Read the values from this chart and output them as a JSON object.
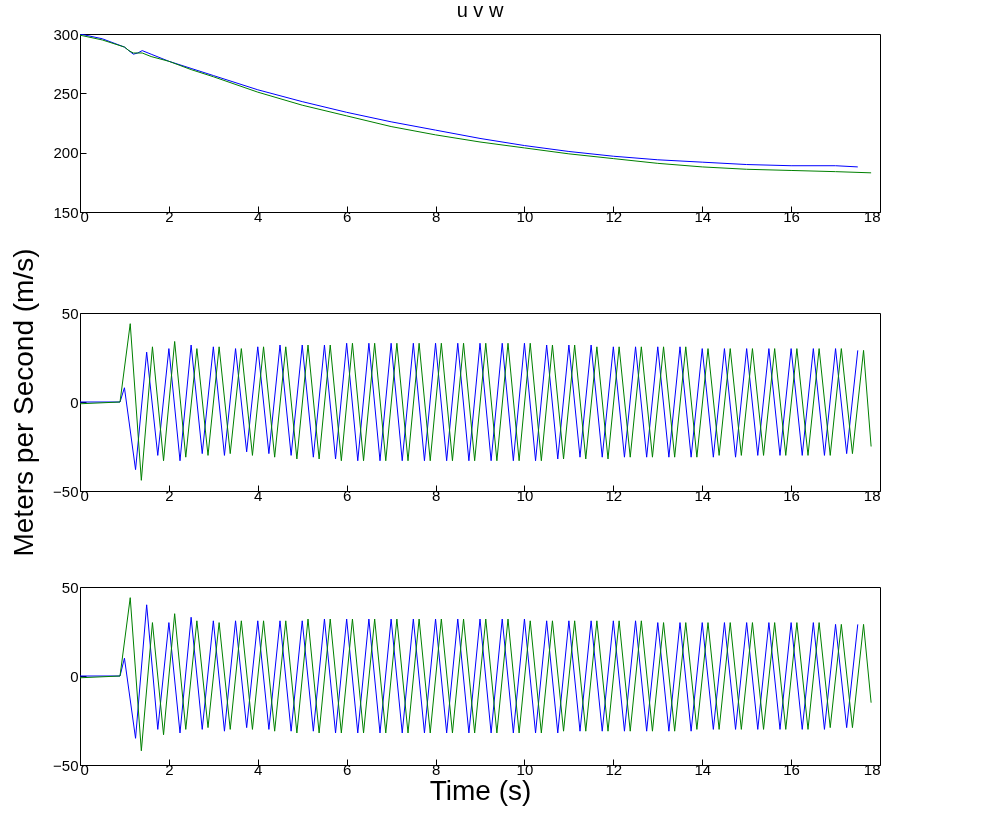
{
  "chart_data": [
    {
      "type": "line",
      "title": "u v w",
      "xlim": [
        0,
        18
      ],
      "xticks": [
        0,
        2,
        4,
        6,
        8,
        10,
        12,
        14,
        16,
        18
      ],
      "ylim": [
        150,
        300
      ],
      "yticks": [
        150,
        200,
        250,
        300
      ],
      "series": [
        {
          "color": "#0000ff",
          "x": [
            0,
            0.5,
            1.0,
            1.1,
            1.2,
            1.3,
            1.4,
            1.6,
            2,
            2.5,
            3,
            4,
            5,
            6,
            7,
            8,
            9,
            10,
            11,
            12,
            13,
            14,
            15,
            16,
            17,
            17.5
          ],
          "values": [
            300,
            296,
            289,
            286,
            283,
            284,
            286,
            283,
            277,
            271,
            265,
            253,
            243,
            234,
            226,
            219,
            212,
            206,
            201,
            197,
            194,
            192,
            190,
            189,
            189,
            188
          ]
        },
        {
          "color": "#008000",
          "x": [
            0,
            0.5,
            1.0,
            1.1,
            1.2,
            1.3,
            1.4,
            1.6,
            2,
            2.5,
            3,
            4,
            5,
            6,
            7,
            8,
            9,
            10,
            11,
            12,
            13,
            14,
            15,
            16,
            17,
            17.8
          ],
          "values": [
            299,
            295,
            289,
            286,
            284,
            284,
            284,
            281,
            277,
            270,
            264,
            251,
            240,
            231,
            222,
            215,
            209,
            204,
            199,
            195,
            191,
            188,
            186,
            185,
            184,
            183
          ]
        }
      ]
    },
    {
      "type": "line",
      "ylabel": "Meters per Second (m/s)",
      "xlim": [
        0,
        18
      ],
      "xticks": [
        0,
        2,
        4,
        6,
        8,
        10,
        12,
        14,
        16,
        18
      ],
      "ylim": [
        -50,
        50
      ],
      "yticks": [
        -50,
        0,
        50
      ],
      "series": [
        {
          "color": "#0000ff",
          "x": [
            0,
            0.9,
            1.0,
            1.25,
            1.5,
            1.75,
            2.0,
            2.25,
            2.5,
            2.75,
            3.0,
            3.25,
            3.5,
            3.75,
            4.0,
            4.25,
            4.5,
            4.75,
            5.0,
            5.25,
            5.5,
            5.75,
            6.0,
            6.25,
            6.5,
            6.75,
            7.0,
            7.25,
            7.5,
            7.75,
            8.0,
            8.25,
            8.5,
            8.75,
            9.0,
            9.25,
            9.5,
            9.75,
            10.0,
            10.25,
            10.5,
            10.75,
            11.0,
            11.25,
            11.5,
            11.75,
            12.0,
            12.25,
            12.5,
            12.75,
            13.0,
            13.25,
            13.5,
            13.75,
            14.0,
            14.25,
            14.5,
            14.75,
            15.0,
            15.25,
            15.5,
            15.75,
            16.0,
            16.25,
            16.5,
            16.75,
            17.0,
            17.25,
            17.5
          ],
          "values": [
            0,
            0,
            8,
            -38,
            28,
            -30,
            30,
            -33,
            32,
            -29,
            31,
            -30,
            30,
            -28,
            31,
            -29,
            32,
            -30,
            32,
            -31,
            32,
            -32,
            33,
            -33,
            33,
            -33,
            33,
            -33,
            33,
            -33,
            33,
            -33,
            33,
            -33,
            33,
            -33,
            33,
            -33,
            33,
            -33,
            32,
            -32,
            32,
            -31,
            32,
            -31,
            31,
            -31,
            31,
            -31,
            31,
            -31,
            31,
            -31,
            30,
            -31,
            30,
            -31,
            30,
            -30,
            30,
            -30,
            30,
            -30,
            30,
            -30,
            30,
            -29,
            29
          ]
        },
        {
          "color": "#008000",
          "x": [
            0,
            0.9,
            1.13,
            1.38,
            1.63,
            1.88,
            2.13,
            2.38,
            2.63,
            2.88,
            3.13,
            3.38,
            3.63,
            3.88,
            4.13,
            4.38,
            4.63,
            4.88,
            5.13,
            5.38,
            5.63,
            5.88,
            6.13,
            6.38,
            6.63,
            6.88,
            7.13,
            7.38,
            7.63,
            7.88,
            8.13,
            8.38,
            8.63,
            8.88,
            9.13,
            9.38,
            9.63,
            9.88,
            10.13,
            10.38,
            10.63,
            10.88,
            11.13,
            11.38,
            11.63,
            11.88,
            12.13,
            12.38,
            12.63,
            12.88,
            13.13,
            13.38,
            13.63,
            13.88,
            14.13,
            14.38,
            14.63,
            14.88,
            15.13,
            15.38,
            15.63,
            15.88,
            16.13,
            16.38,
            16.63,
            16.88,
            17.13,
            17.38,
            17.63,
            17.8
          ],
          "values": [
            -1,
            0,
            44,
            -44,
            31,
            -33,
            34,
            -31,
            30,
            -30,
            31,
            -29,
            30,
            -30,
            31,
            -31,
            31,
            -32,
            32,
            -32,
            32,
            -33,
            33,
            -33,
            33,
            -33,
            33,
            -33,
            33,
            -33,
            33,
            -33,
            33,
            -33,
            33,
            -33,
            33,
            -33,
            33,
            -33,
            32,
            -32,
            32,
            -32,
            31,
            -32,
            31,
            -31,
            31,
            -31,
            31,
            -31,
            31,
            -31,
            30,
            -30,
            30,
            -30,
            30,
            -30,
            30,
            -30,
            30,
            -30,
            30,
            -30,
            30,
            -29,
            29,
            -25
          ]
        }
      ]
    },
    {
      "type": "line",
      "xlabel": "Time (s)",
      "xlim": [
        0,
        18
      ],
      "xticks": [
        0,
        2,
        4,
        6,
        8,
        10,
        12,
        14,
        16,
        18
      ],
      "ylim": [
        -50,
        50
      ],
      "yticks": [
        -50,
        0,
        50
      ],
      "series": [
        {
          "color": "#0000ff",
          "x": [
            0,
            0.9,
            1.0,
            1.25,
            1.5,
            1.75,
            2.0,
            2.25,
            2.5,
            2.75,
            3.0,
            3.25,
            3.5,
            3.75,
            4.0,
            4.25,
            4.5,
            4.75,
            5.0,
            5.25,
            5.5,
            5.75,
            6.0,
            6.25,
            6.5,
            6.75,
            7.0,
            7.25,
            7.5,
            7.75,
            8.0,
            8.25,
            8.5,
            8.75,
            9.0,
            9.25,
            9.5,
            9.75,
            10.0,
            10.25,
            10.5,
            10.75,
            11.0,
            11.25,
            11.5,
            11.75,
            12.0,
            12.25,
            12.5,
            12.75,
            13.0,
            13.25,
            13.5,
            13.75,
            14.0,
            14.25,
            14.5,
            14.75,
            15.0,
            15.25,
            15.5,
            15.75,
            16.0,
            16.25,
            16.5,
            16.75,
            17.0,
            17.25,
            17.5
          ],
          "values": [
            0,
            0,
            10,
            -35,
            40,
            -30,
            30,
            -32,
            33,
            -30,
            31,
            -31,
            31,
            -29,
            31,
            -30,
            31,
            -31,
            31,
            -31,
            32,
            -32,
            32,
            -32,
            32,
            -32,
            32,
            -32,
            32,
            -32,
            32,
            -32,
            32,
            -32,
            32,
            -32,
            32,
            -32,
            32,
            -32,
            31,
            -32,
            31,
            -31,
            31,
            -31,
            31,
            -31,
            31,
            -31,
            30,
            -31,
            30,
            -31,
            30,
            -30,
            30,
            -30,
            30,
            -30,
            30,
            -30,
            30,
            -30,
            30,
            -30,
            29,
            -29,
            29
          ]
        },
        {
          "color": "#008000",
          "x": [
            0,
            0.9,
            1.13,
            1.38,
            1.63,
            1.88,
            2.13,
            2.38,
            2.63,
            2.88,
            3.13,
            3.38,
            3.63,
            3.88,
            4.13,
            4.38,
            4.63,
            4.88,
            5.13,
            5.38,
            5.63,
            5.88,
            6.13,
            6.38,
            6.63,
            6.88,
            7.13,
            7.38,
            7.63,
            7.88,
            8.13,
            8.38,
            8.63,
            8.88,
            9.13,
            9.38,
            9.63,
            9.88,
            10.13,
            10.38,
            10.63,
            10.88,
            11.13,
            11.38,
            11.63,
            11.88,
            12.13,
            12.38,
            12.63,
            12.88,
            13.13,
            13.38,
            13.63,
            13.88,
            14.13,
            14.38,
            14.63,
            14.88,
            15.13,
            15.38,
            15.63,
            15.88,
            16.13,
            16.38,
            16.63,
            16.88,
            17.13,
            17.38,
            17.63,
            17.8
          ],
          "values": [
            -1,
            0,
            44,
            -42,
            30,
            -33,
            35,
            -30,
            31,
            -29,
            30,
            -30,
            31,
            -30,
            31,
            -31,
            31,
            -32,
            32,
            -32,
            32,
            -32,
            32,
            -32,
            32,
            -32,
            32,
            -32,
            32,
            -32,
            32,
            -32,
            32,
            -32,
            32,
            -32,
            32,
            -32,
            31,
            -32,
            31,
            -31,
            31,
            -31,
            31,
            -31,
            31,
            -31,
            31,
            -31,
            30,
            -31,
            30,
            -30,
            30,
            -30,
            30,
            -30,
            30,
            -30,
            30,
            -30,
            30,
            -30,
            30,
            -29,
            29,
            -29,
            29,
            -15
          ]
        }
      ]
    }
  ]
}
